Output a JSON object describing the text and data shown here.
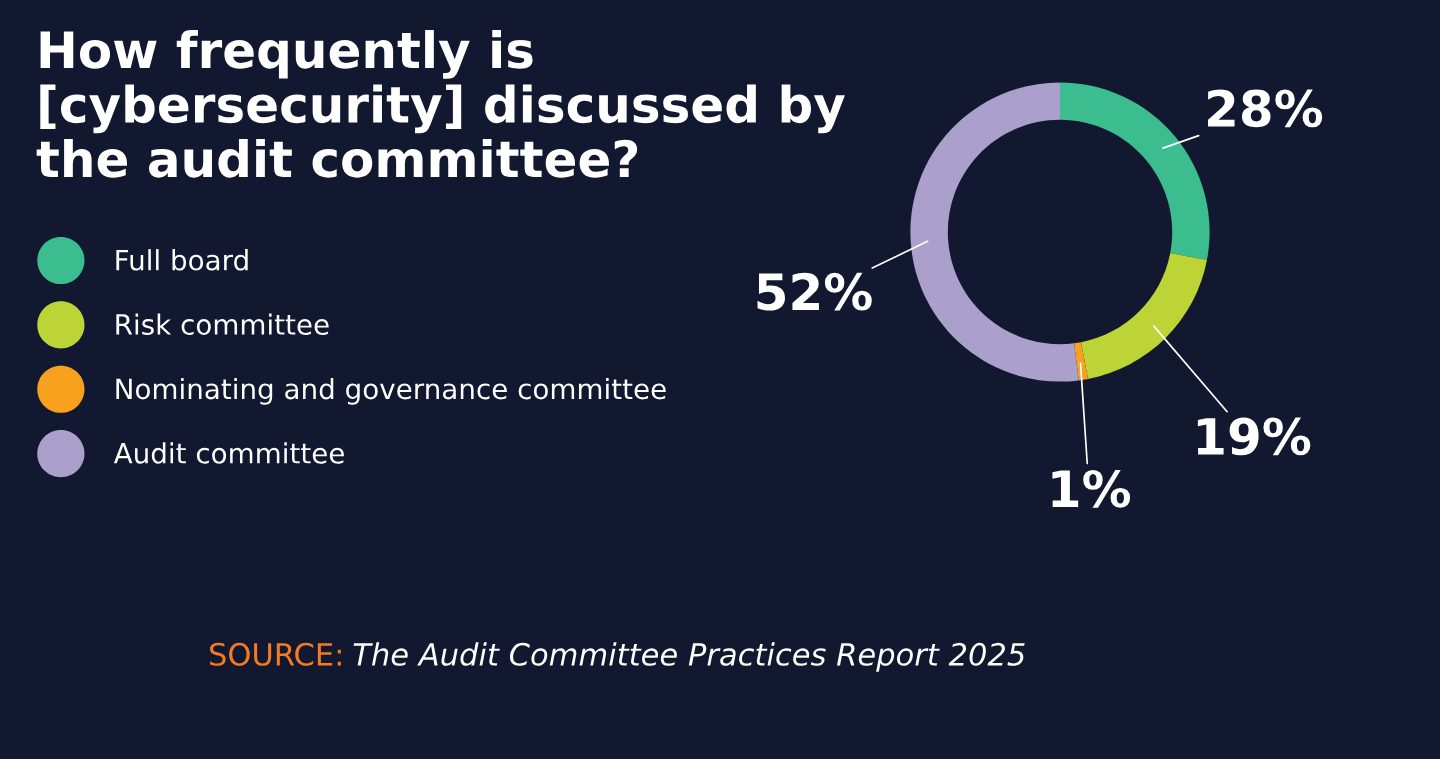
{
  "chart_data": {
    "type": "donut",
    "title": "How frequently is\n[cybersecurity] discussed by\nthe audit committee?",
    "categories": [
      "Full board",
      "Risk committee",
      "Nominating and governance committee",
      "Audit committee"
    ],
    "values": [
      28,
      19,
      1,
      52
    ],
    "colors": [
      "#3bbd8f",
      "#bcd435",
      "#f7a11f",
      "#ab9fcc"
    ],
    "value_labels": [
      "28%",
      "19%",
      "1%",
      "52%"
    ],
    "legend": "left",
    "annotations": [
      "SOURCE:",
      "The Audit Committee Practices Report 2025"
    ]
  }
}
